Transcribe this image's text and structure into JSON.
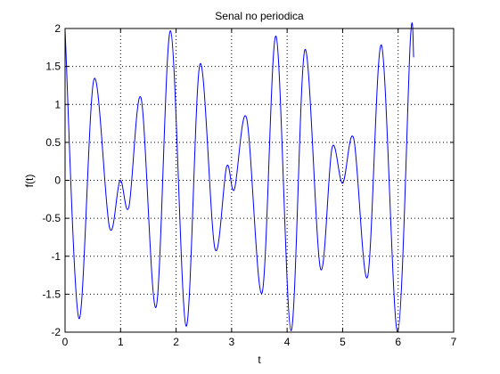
{
  "chart_data": {
    "type": "line",
    "title": "Senal no periodica",
    "xlabel": "t",
    "ylabel": "f(t)",
    "xlim": [
      0,
      7
    ],
    "ylim": [
      -2,
      2
    ],
    "xticks": [
      0,
      1,
      2,
      3,
      4,
      5,
      6,
      7
    ],
    "yticks": [
      -2,
      -1.5,
      -1,
      -0.5,
      0,
      0.5,
      1,
      1.5,
      2
    ],
    "grid": true,
    "series": [
      {
        "color": "#0000ff",
        "x": [
          0,
          0.25,
          0.52,
          0.8,
          0.99,
          1.15,
          1.37,
          1.64,
          1.9,
          2.18,
          2.43,
          2.7,
          2.91,
          3.05,
          3.27,
          3.55,
          3.8,
          4.07,
          4.32,
          4.6,
          4.81,
          5.0,
          5.2,
          5.45,
          5.7,
          5.99,
          6.22,
          6.28
        ],
        "y": [
          1.98,
          -1.82,
          1.33,
          -0.62,
          0.0,
          -0.35,
          1.08,
          -1.67,
          1.97,
          -1.92,
          1.53,
          -0.9,
          0.18,
          -0.12,
          0.82,
          -1.48,
          1.9,
          -1.98,
          1.72,
          -1.16,
          0.43,
          -0.04,
          0.55,
          -1.27,
          1.78,
          -2.0,
          1.85,
          1.62
        ]
      }
    ]
  }
}
